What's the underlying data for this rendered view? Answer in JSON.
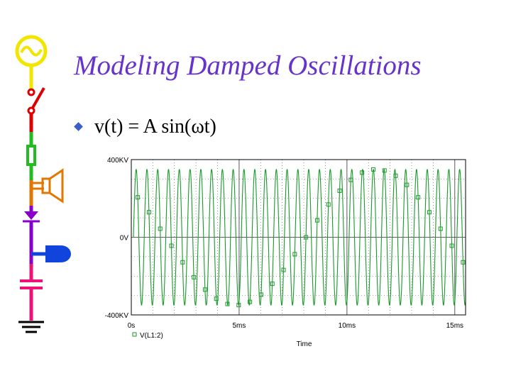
{
  "slide": {
    "title": "Modeling Damped Oscillations",
    "bullet": "v(t) = A sin(ωt)"
  },
  "colors": {
    "title": "#6633cc",
    "trace": "#1a9a2a",
    "grid": "#555555",
    "bullet": "#3a5fcd"
  },
  "icons": [
    "ac-source-icon",
    "switch-icon",
    "resistor-icon",
    "speaker-icon",
    "diode-icon",
    "battery-icon",
    "capacitor-icon",
    "ground-icon"
  ],
  "chart_data": {
    "type": "line",
    "title": "",
    "xlabel": "Time",
    "ylabel": "",
    "xlim": [
      0,
      15.5
    ],
    "ylim": [
      -400,
      400
    ],
    "x_unit": "ms",
    "y_unit": "KV",
    "x_ticks": [
      0,
      5,
      10,
      15
    ],
    "x_tick_labels": [
      "0s",
      "5ms",
      "10ms",
      "15ms"
    ],
    "y_ticks": [
      400,
      0,
      -400
    ],
    "y_tick_labels": [
      "400KV",
      "0V",
      "-400KV"
    ],
    "grid": true,
    "legend": {
      "position": "bottom-left",
      "marker": "square"
    },
    "series": [
      {
        "name": "V(L1:2)",
        "amplitude": 350,
        "period_ms": 0.5,
        "x_start": 0.1,
        "x_end": 15.5
      }
    ]
  }
}
